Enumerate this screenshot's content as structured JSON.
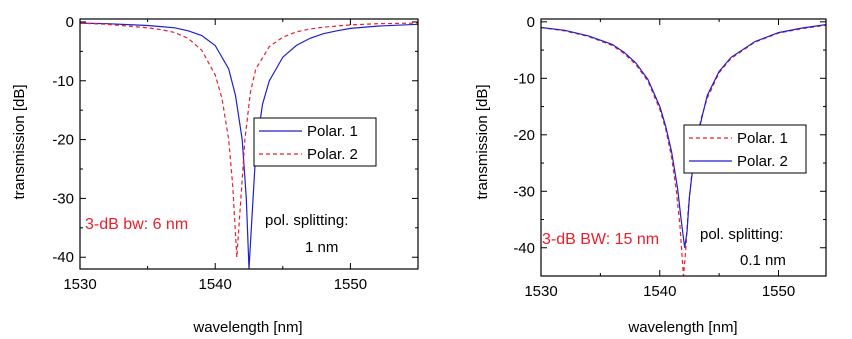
{
  "chart_data": [
    {
      "type": "line",
      "xlabel": "wavelength [nm]",
      "ylabel": "transmission [dB]",
      "xlim": [
        1530,
        1555
      ],
      "ylim": [
        -42,
        0.5
      ],
      "xticks": [
        1530,
        1540,
        1550
      ],
      "yticks": [
        0,
        -10,
        -20,
        -30,
        -40
      ],
      "xtick_labels": [
        "1530",
        "1540",
        "1550"
      ],
      "ytick_labels": [
        "0",
        "-10",
        "-20",
        "-30",
        "-40"
      ],
      "legend_position": "middle-right",
      "annotations": {
        "bandwidth": "3-dB bw: 6 nm",
        "splitting_line1": "pol. splitting:",
        "splitting_line2": "1 nm"
      },
      "series": [
        {
          "name": "Polar. 1",
          "color": "#1f1fd0",
          "dash": "solid",
          "x": [
            1530,
            1532,
            1534,
            1535,
            1536,
            1537,
            1538,
            1539,
            1540,
            1541,
            1541.5,
            1542,
            1542.3,
            1542.5,
            1542.7,
            1543,
            1543.5,
            1544,
            1545,
            1546,
            1547,
            1548,
            1549,
            1550,
            1552,
            1555
          ],
          "values": [
            -0.2,
            -0.3,
            -0.5,
            -0.6,
            -0.8,
            -1.0,
            -1.5,
            -2.3,
            -4.0,
            -8.0,
            -12.5,
            -20.0,
            -30.0,
            -42.0,
            -34.0,
            -22.0,
            -14.0,
            -10.0,
            -6.0,
            -4.0,
            -2.8,
            -2.0,
            -1.5,
            -1.1,
            -0.7,
            -0.4
          ]
        },
        {
          "name": "Polar. 2",
          "color": "#e8202a",
          "dash": "dashed",
          "x": [
            1530,
            1532,
            1534,
            1535,
            1536,
            1537,
            1538,
            1539,
            1540,
            1540.5,
            1541,
            1541.3,
            1541.6,
            1541.9,
            1542.2,
            1542.6,
            1543,
            1544,
            1545,
            1546,
            1547,
            1548,
            1550,
            1552,
            1555
          ],
          "values": [
            -0.2,
            -0.4,
            -0.8,
            -1.0,
            -1.3,
            -1.8,
            -2.8,
            -4.8,
            -9.0,
            -13.0,
            -20.0,
            -28.0,
            -40.0,
            -30.0,
            -20.0,
            -12.0,
            -8.0,
            -4.2,
            -2.6,
            -1.7,
            -1.2,
            -0.9,
            -0.5,
            -0.3,
            -0.2
          ]
        }
      ]
    },
    {
      "type": "line",
      "xlabel": "wavelength [nm]",
      "ylabel": "transmission [dB]",
      "xlim": [
        1530,
        1554
      ],
      "ylim": [
        -45,
        0.5
      ],
      "xticks": [
        1530,
        1540,
        1550
      ],
      "yticks": [
        0,
        -10,
        -20,
        -30,
        -40
      ],
      "xtick_labels": [
        "1530",
        "1540",
        "1550"
      ],
      "ytick_labels": [
        "0",
        "-10",
        "-20",
        "-30",
        "-40"
      ],
      "legend_position": "middle-right",
      "annotations": {
        "bandwidth": "3-dB BW: 15 nm",
        "splitting_line1": "pol. splitting:",
        "splitting_line2": "0.1 nm"
      },
      "series": [
        {
          "name": "Polar. 1",
          "color": "#e8202a",
          "dash": "dashed",
          "x": [
            1530,
            1532,
            1534,
            1536,
            1537,
            1538,
            1539,
            1540,
            1540.5,
            1541,
            1541.4,
            1541.7,
            1542.0,
            1542.2,
            1542.4,
            1542.7,
            1543.0,
            1543.5,
            1544,
            1545,
            1546,
            1548,
            1550,
            1552,
            1554
          ],
          "values": [
            -1.0,
            -1.6,
            -2.6,
            -4.2,
            -5.6,
            -7.6,
            -10.5,
            -15.5,
            -19.0,
            -24.0,
            -30.0,
            -36.0,
            -45.0,
            -40.0,
            -33.0,
            -27.0,
            -22.0,
            -17.0,
            -13.5,
            -9.0,
            -6.5,
            -3.6,
            -2.0,
            -1.2,
            -0.6
          ]
        },
        {
          "name": "Polar. 2",
          "color": "#1f1fd0",
          "dash": "solid",
          "x": [
            1530,
            1532,
            1534,
            1536,
            1537,
            1538,
            1539,
            1540,
            1540.5,
            1541,
            1541.5,
            1541.8,
            1542.1,
            1542.3,
            1542.5,
            1542.8,
            1543.1,
            1543.6,
            1544,
            1545,
            1546,
            1548,
            1550,
            1552,
            1554
          ],
          "values": [
            -1.0,
            -1.5,
            -2.5,
            -4.0,
            -5.4,
            -7.3,
            -10.2,
            -15.0,
            -18.5,
            -23.0,
            -29.5,
            -35.0,
            -40.0,
            -37.0,
            -31.0,
            -25.5,
            -21.0,
            -16.5,
            -13.0,
            -8.8,
            -6.3,
            -3.5,
            -1.9,
            -1.1,
            -0.5
          ]
        }
      ]
    }
  ]
}
